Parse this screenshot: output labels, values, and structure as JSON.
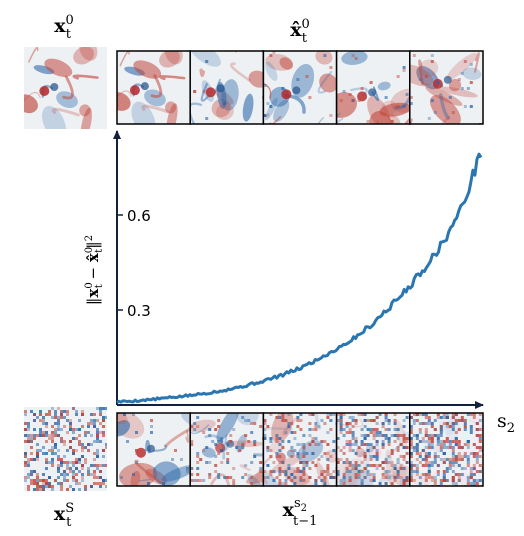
{
  "labels": {
    "clean_reference": "x_t^0",
    "predictions": "x̂_t^0",
    "noise_reference": "x_t^S",
    "noisy_states": "x_{t-1}^{s_2}",
    "x_axis": "s_2",
    "y_axis": "||x_t^0 − x̂_t^0||^2"
  },
  "colors": {
    "curve": "#2a76b1",
    "axis": "#14213d",
    "tile_border": "#000000",
    "positive_field": "#c0453a",
    "negative_field": "#2a66a8",
    "background_field": "#eef1f4"
  },
  "tiles": {
    "prediction_count": 5,
    "noisy_count": 5,
    "noise_levels": [
      0.05,
      0.22,
      0.45,
      0.7,
      0.92
    ]
  },
  "chart_data": {
    "type": "line",
    "title": "",
    "xlabel": "s_2",
    "ylabel": "||x_t^0 − x̂_t^0||^2",
    "ylim": [
      0,
      0.85
    ],
    "yticks": [
      0.3,
      0.6
    ],
    "ytick_labels": [
      "0.3",
      "0.6"
    ],
    "grid": false,
    "series": [
      {
        "x": [
          0,
          0.05,
          0.1,
          0.15,
          0.2,
          0.25,
          0.3,
          0.35,
          0.4,
          0.45,
          0.5,
          0.55,
          0.6,
          0.65,
          0.7,
          0.75,
          0.8,
          0.85,
          0.9,
          0.95,
          1.0
        ],
        "values": [
          0.01,
          0.013,
          0.018,
          0.024,
          0.03,
          0.038,
          0.048,
          0.06,
          0.075,
          0.093,
          0.115,
          0.143,
          0.175,
          0.21,
          0.255,
          0.31,
          0.37,
          0.44,
          0.52,
          0.63,
          0.8
        ]
      }
    ]
  }
}
